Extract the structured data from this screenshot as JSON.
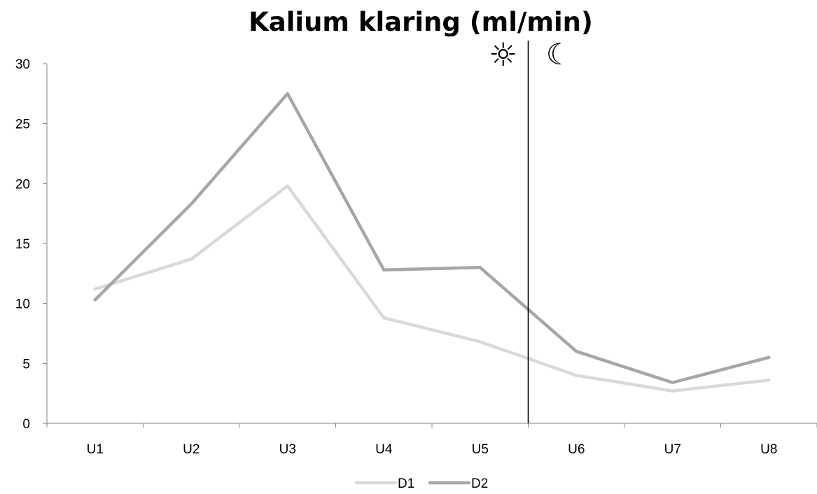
{
  "chart_data": {
    "type": "line",
    "title": "Kalium klaring (ml/min)",
    "xlabel": "",
    "ylabel": "",
    "categories": [
      "U1",
      "U2",
      "U3",
      "U4",
      "U5",
      "U6",
      "U7",
      "U8"
    ],
    "series": [
      {
        "name": "D1",
        "color": "#d9d9d9",
        "values": [
          11.2,
          13.7,
          19.8,
          8.8,
          6.8,
          4.0,
          2.7,
          3.6
        ]
      },
      {
        "name": "D2",
        "color": "#a6a6a6",
        "values": [
          10.3,
          18.3,
          27.5,
          12.8,
          13.0,
          6.0,
          3.4,
          5.5
        ]
      }
    ],
    "ylim": [
      0,
      30
    ],
    "yticks": [
      0,
      5,
      10,
      15,
      20,
      25,
      30
    ],
    "grid": false,
    "legend_position": "bottom",
    "annotations": {
      "divider_position": "between U5 and U6",
      "day_symbol": "☼",
      "night_symbol": "☾",
      "day_icon": "sun-icon",
      "night_icon": "moon-icon"
    }
  }
}
